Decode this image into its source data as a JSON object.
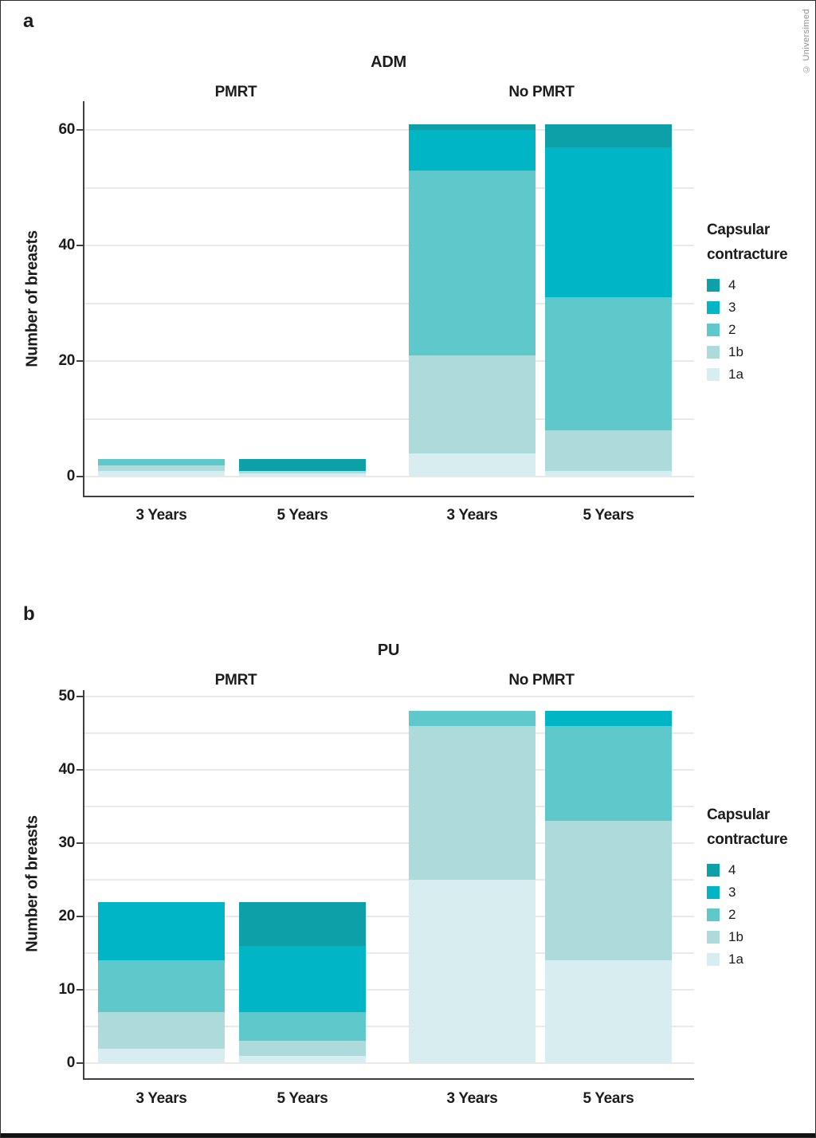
{
  "figure": {
    "copyright": "© Universimed"
  },
  "legend": {
    "title_lines": [
      "Capsular",
      "contracture"
    ],
    "items": [
      {
        "label": "4",
        "color": "#0ea0a8"
      },
      {
        "label": "3",
        "color": "#00b5c5"
      },
      {
        "label": "2",
        "color": "#5fc8ca"
      },
      {
        "label": "1b",
        "color": "#addbdc"
      },
      {
        "label": "1a",
        "color": "#d8edef"
      }
    ]
  },
  "chart_data": [
    {
      "type": "bar",
      "stacked": true,
      "panel_label": "a",
      "title": "ADM",
      "ylabel": "Number of breasts",
      "facets": [
        "PMRT",
        "No PMRT"
      ],
      "categories": [
        "3 Years",
        "5 Years",
        "3 Years",
        "5 Years"
      ],
      "facet_of_category": [
        0,
        0,
        1,
        1
      ],
      "stack_order": [
        "1a",
        "1b",
        "2",
        "3",
        "4"
      ],
      "series": [
        {
          "name": "4",
          "values": [
            0,
            2,
            1,
            4
          ]
        },
        {
          "name": "3",
          "values": [
            0,
            0,
            7,
            26
          ]
        },
        {
          "name": "2",
          "values": [
            1,
            0,
            32,
            23
          ]
        },
        {
          "name": "1b",
          "values": [
            1,
            0.5,
            17,
            7
          ]
        },
        {
          "name": "1a",
          "values": [
            1,
            0.5,
            4,
            1
          ]
        }
      ],
      "totals": [
        3,
        3,
        61,
        61
      ],
      "yticks": [
        0,
        20,
        40,
        60
      ],
      "minor_tick_step": 10,
      "ylim": [
        0,
        65
      ],
      "grid": true,
      "legend_position": "right"
    },
    {
      "type": "bar",
      "stacked": true,
      "panel_label": "b",
      "title": "PU",
      "ylabel": "Number of breasts",
      "facets": [
        "PMRT",
        "No PMRT"
      ],
      "categories": [
        "3 Years",
        "5 Years",
        "3 Years",
        "5 Years"
      ],
      "facet_of_category": [
        0,
        0,
        1,
        1
      ],
      "stack_order": [
        "1a",
        "1b",
        "2",
        "3",
        "4"
      ],
      "series": [
        {
          "name": "4",
          "values": [
            0,
            6,
            0,
            0
          ]
        },
        {
          "name": "3",
          "values": [
            8,
            9,
            0,
            2
          ]
        },
        {
          "name": "2",
          "values": [
            7,
            4,
            2,
            13
          ]
        },
        {
          "name": "1b",
          "values": [
            5,
            2,
            21,
            19
          ]
        },
        {
          "name": "1a",
          "values": [
            2,
            1,
            25,
            14
          ]
        }
      ],
      "totals": [
        22,
        22,
        48,
        48
      ],
      "yticks": [
        0,
        10,
        20,
        30,
        40,
        50
      ],
      "minor_tick_step": 5,
      "ylim": [
        0,
        51
      ],
      "grid": true,
      "legend_position": "right"
    }
  ]
}
